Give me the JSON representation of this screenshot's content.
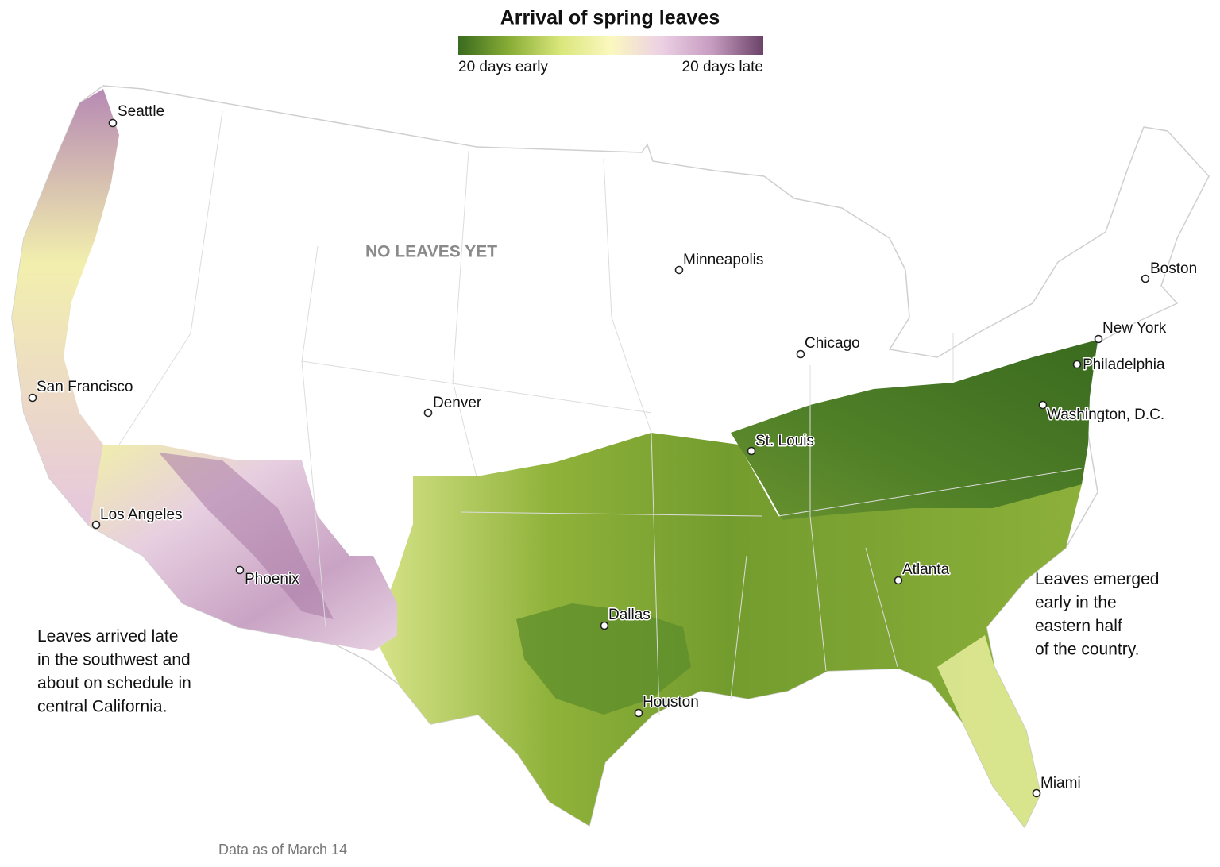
{
  "title": "Arrival of spring leaves",
  "legend": {
    "low_label": "20 days early",
    "high_label": "20 days late",
    "colors": [
      "#3a6b1f",
      "#88ad36",
      "#d9e67a",
      "#fbf8bf",
      "#ecd0e4",
      "#c69bc0",
      "#6b4268"
    ]
  },
  "region_label": "NO LEAVES YET",
  "cities": [
    "Seattle",
    "Minneapolis",
    "Boston",
    "New York",
    "Philadelphia",
    "Washington, D.C.",
    "Chicago",
    "San Francisco",
    "Denver",
    "St. Louis",
    "Los Angeles",
    "Phoenix",
    "Atlanta",
    "Dallas",
    "Houston",
    "Miami"
  ],
  "annotations": [
    [
      "Leaves arrived late",
      "in the southwest and",
      "about on schedule in",
      "central California."
    ],
    [
      "Leaves emerged",
      "early in the",
      "eastern half",
      "of the country."
    ]
  ],
  "note": "Data as of March 14"
}
